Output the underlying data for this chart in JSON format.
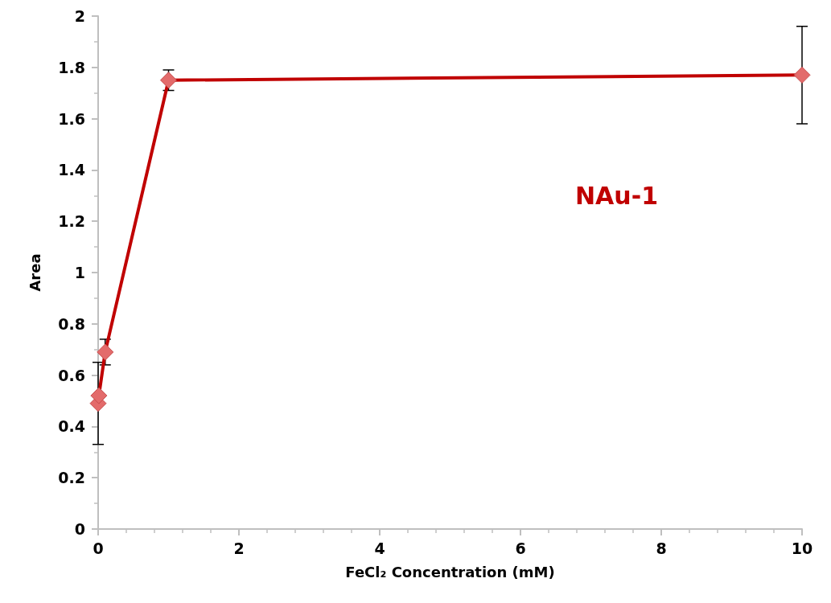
{
  "chart_data": {
    "type": "line",
    "xlabel": "FeCl₂ Concentration (mM)",
    "ylabel": "Area",
    "x": [
      0,
      0.01,
      0.1,
      1,
      10
    ],
    "series": [
      {
        "name": "NAu-1",
        "color": "#c00000",
        "values": [
          0.49,
          0.52,
          0.69,
          1.75,
          1.77
        ],
        "errors": [
          0.16,
          null,
          0.05,
          0.04,
          0.19
        ]
      }
    ],
    "xlim": [
      0,
      10
    ],
    "xticks": [
      0,
      2,
      4,
      6,
      8,
      10
    ],
    "ylim": [
      0,
      2
    ],
    "yticks": [
      0,
      0.2,
      0.4,
      0.6,
      0.8,
      1,
      1.2,
      1.4,
      1.6,
      1.8,
      2
    ],
    "grid": false,
    "legend": false,
    "marker": "diamond",
    "line_style": "solid"
  }
}
